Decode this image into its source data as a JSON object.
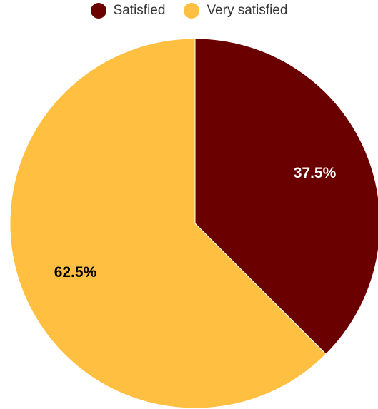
{
  "chart_data": {
    "type": "pie",
    "title": "",
    "legend_position": "top",
    "start_angle_deg": 0,
    "direction": "clockwise",
    "slices": [
      {
        "name": "Satisfied",
        "value": 37.5,
        "label": "37.5%",
        "color": "#6a0000",
        "label_color": "#ffffff"
      },
      {
        "name": "Very satisfied",
        "value": 62.5,
        "label": "62.5%",
        "color": "#ffbf40",
        "label_color": "#000000"
      }
    ]
  }
}
